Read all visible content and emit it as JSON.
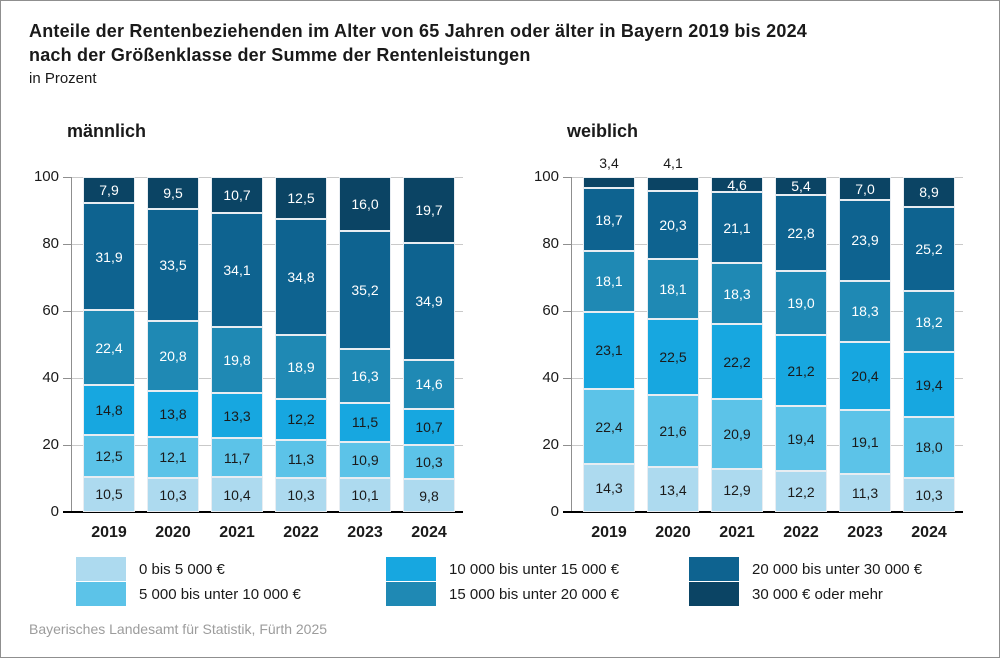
{
  "header": {
    "title_line1": "Anteile der Rentenbeziehenden im Alter von 65 Jahren oder älter in Bayern 2019 bis 2024",
    "title_line2": "nach der Größenklasse der Summe der Rentenleistungen",
    "subtitle": "in Prozent"
  },
  "footer": {
    "source": "Bayerisches Landesamt für Statistik, Fürth 2025"
  },
  "colors": {
    "series": [
      "#addaef",
      "#5cc3e8",
      "#17a7e0",
      "#1f89b4",
      "#0e6390",
      "#0b4464"
    ],
    "grid": "#c9c9c9",
    "axis": "#8f8f8f",
    "baseline": "#000000"
  },
  "chart_data": [
    {
      "type": "bar",
      "stacked": true,
      "title": "männlich",
      "categories": [
        "2019",
        "2020",
        "2021",
        "2022",
        "2023",
        "2024"
      ],
      "series": [
        {
          "name": "0 bis 5 000 €",
          "values": [
            10.5,
            10.3,
            10.4,
            10.3,
            10.1,
            9.8
          ]
        },
        {
          "name": "5 000 bis unter 10 000 €",
          "values": [
            12.5,
            12.1,
            11.7,
            11.3,
            10.9,
            10.3
          ]
        },
        {
          "name": "10 000 bis unter 15 000 €",
          "values": [
            14.8,
            13.8,
            13.3,
            12.2,
            11.5,
            10.7
          ]
        },
        {
          "name": "15 000 bis unter 20 000 €",
          "values": [
            22.4,
            20.8,
            19.8,
            18.9,
            16.3,
            14.6
          ]
        },
        {
          "name": "20 000 bis unter 30 000 €",
          "values": [
            31.9,
            33.5,
            34.1,
            34.8,
            35.2,
            34.9
          ]
        },
        {
          "name": "30 000 € oder mehr",
          "values": [
            7.9,
            9.5,
            10.7,
            12.5,
            16.0,
            19.7
          ]
        }
      ],
      "ylim": [
        0,
        100
      ],
      "yticks": [
        0,
        20,
        40,
        60,
        80,
        100
      ],
      "grid": true,
      "decimal_separator": ","
    },
    {
      "type": "bar",
      "stacked": true,
      "title": "weiblich",
      "categories": [
        "2019",
        "2020",
        "2021",
        "2022",
        "2023",
        "2024"
      ],
      "series": [
        {
          "name": "0 bis 5 000 €",
          "values": [
            14.3,
            13.4,
            12.9,
            12.2,
            11.3,
            10.3
          ]
        },
        {
          "name": "5 000 bis unter 10 000 €",
          "values": [
            22.4,
            21.6,
            20.9,
            19.4,
            19.1,
            18.0
          ]
        },
        {
          "name": "10 000 bis unter 15 000 €",
          "values": [
            23.1,
            22.5,
            22.2,
            21.2,
            20.4,
            19.4
          ]
        },
        {
          "name": "15 000 bis unter 20 000 €",
          "values": [
            18.1,
            18.1,
            18.3,
            19.0,
            18.3,
            18.2
          ]
        },
        {
          "name": "20 000 bis unter 30 000 €",
          "values": [
            18.7,
            20.3,
            21.1,
            22.8,
            23.9,
            25.2
          ]
        },
        {
          "name": "30 000 € oder mehr",
          "values": [
            3.4,
            4.1,
            4.6,
            5.4,
            7.0,
            8.9
          ]
        }
      ],
      "ylim": [
        0,
        100
      ],
      "yticks": [
        0,
        20,
        40,
        60,
        80,
        100
      ],
      "grid": true,
      "decimal_separator": ","
    }
  ],
  "legend": {
    "position": "bottom",
    "columns": [
      {
        "items": [
          {
            "label": "0 bis 5 000 €",
            "color_index": 0
          },
          {
            "label": "5 000 bis unter 10 000 €",
            "color_index": 1
          }
        ]
      },
      {
        "items": [
          {
            "label": "10 000 bis unter 15 000 €",
            "color_index": 2
          },
          {
            "label": "15 000 bis unter 20 000 €",
            "color_index": 3
          }
        ]
      },
      {
        "items": [
          {
            "label": "20 000 bis unter 30 000 €",
            "color_index": 4
          },
          {
            "label": "30 000 € oder mehr",
            "color_index": 5
          }
        ]
      }
    ]
  }
}
